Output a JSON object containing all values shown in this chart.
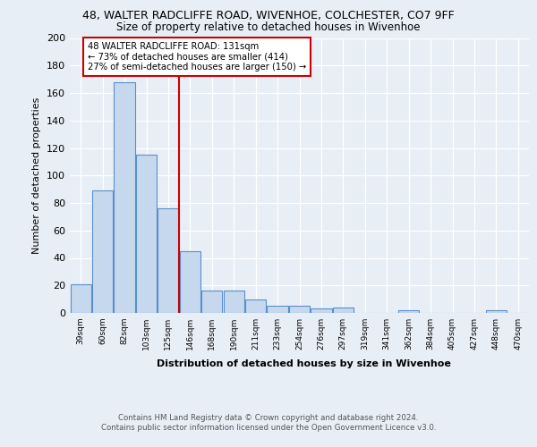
{
  "title1": "48, WALTER RADCLIFFE ROAD, WIVENHOE, COLCHESTER, CO7 9FF",
  "title2": "Size of property relative to detached houses in Wivenhoe",
  "xlabel": "Distribution of detached houses by size in Wivenhoe",
  "ylabel": "Number of detached properties",
  "categories": [
    "39sqm",
    "60sqm",
    "82sqm",
    "103sqm",
    "125sqm",
    "146sqm",
    "168sqm",
    "190sqm",
    "211sqm",
    "233sqm",
    "254sqm",
    "276sqm",
    "297sqm",
    "319sqm",
    "341sqm",
    "362sqm",
    "384sqm",
    "405sqm",
    "427sqm",
    "448sqm",
    "470sqm"
  ],
  "values": [
    21,
    89,
    168,
    115,
    76,
    45,
    16,
    16,
    10,
    5,
    5,
    3,
    4,
    0,
    0,
    2,
    0,
    0,
    0,
    2,
    0
  ],
  "bar_color": "#c5d8ed",
  "bar_edge_color": "#5b8fc9",
  "vline_color": "#cc0000",
  "vline_pos": 4.5,
  "annotation_text": "48 WALTER RADCLIFFE ROAD: 131sqm\n← 73% of detached houses are smaller (414)\n27% of semi-detached houses are larger (150) →",
  "footer": "Contains HM Land Registry data © Crown copyright and database right 2024.\nContains public sector information licensed under the Open Government Licence v3.0.",
  "ylim": [
    0,
    200
  ],
  "yticks": [
    0,
    20,
    40,
    60,
    80,
    100,
    120,
    140,
    160,
    180,
    200
  ],
  "bg_color": "#e8eef6",
  "plot_bg": "#e8eef6"
}
